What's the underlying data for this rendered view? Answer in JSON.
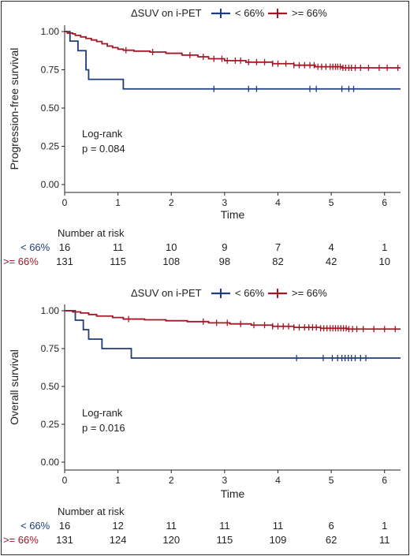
{
  "legend": {
    "title": "ΔSUV on i-PET",
    "entries": [
      "< 66%",
      ">= 66%"
    ]
  },
  "colors": {
    "low": "#1f3d7a",
    "high": "#a31624"
  },
  "risk_header": "Number at risk",
  "chart_data": [
    {
      "type": "line",
      "step": true,
      "ylabel": "Progression-free survival",
      "xlabel": "Time",
      "xlim": [
        0,
        6.3
      ],
      "ylim": [
        0,
        1
      ],
      "xticks": [
        "0",
        "1",
        "2",
        "3",
        "4",
        "5",
        "6"
      ],
      "yticks": [
        "0.00",
        "0.25",
        "0.50",
        "0.75",
        "1.00"
      ],
      "annotation": [
        "Log-rank",
        "p = 0.084"
      ],
      "series": [
        {
          "name": "< 66%",
          "steps": [
            [
              0,
              1.0
            ],
            [
              0.1,
              0.9375
            ],
            [
              0.25,
              0.875
            ],
            [
              0.4,
              0.75
            ],
            [
              0.45,
              0.6875
            ],
            [
              1.1,
              0.625
            ],
            [
              6.3,
              0.625
            ]
          ],
          "censor": [
            2.8,
            3.45,
            3.6,
            4.6,
            4.72,
            5.2,
            5.33,
            5.42
          ]
        },
        {
          "name": ">= 66%",
          "steps": [
            [
              0,
              1.0
            ],
            [
              0.05,
              0.99
            ],
            [
              0.15,
              0.985
            ],
            [
              0.2,
              0.975
            ],
            [
              0.3,
              0.965
            ],
            [
              0.4,
              0.955
            ],
            [
              0.5,
              0.945
            ],
            [
              0.6,
              0.935
            ],
            [
              0.7,
              0.92
            ],
            [
              0.8,
              0.905
            ],
            [
              0.9,
              0.895
            ],
            [
              1.0,
              0.885
            ],
            [
              1.1,
              0.878
            ],
            [
              1.3,
              0.872
            ],
            [
              1.6,
              0.866
            ],
            [
              1.9,
              0.858
            ],
            [
              2.2,
              0.846
            ],
            [
              2.5,
              0.835
            ],
            [
              2.7,
              0.822
            ],
            [
              3.0,
              0.81
            ],
            [
              3.4,
              0.8
            ],
            [
              3.9,
              0.79
            ],
            [
              4.3,
              0.78
            ],
            [
              4.7,
              0.77
            ],
            [
              5.2,
              0.763
            ],
            [
              6.3,
              0.763
            ]
          ],
          "censor": [
            1.15,
            1.65,
            2.35,
            2.6,
            2.8,
            2.95,
            3.05,
            3.2,
            3.3,
            3.45,
            3.6,
            3.75,
            3.9,
            4.0,
            4.15,
            4.3,
            4.4,
            4.5,
            4.6,
            4.68,
            4.75,
            4.82,
            4.9,
            4.98,
            5.03,
            5.08,
            5.12,
            5.17,
            5.22,
            5.27,
            5.33,
            5.38,
            5.45,
            5.55,
            5.7,
            5.9,
            6.05,
            6.25
          ]
        }
      ],
      "risk": {
        "low": [
          "16",
          "11",
          "10",
          "9",
          "7",
          "4",
          "1"
        ],
        "high": [
          "131",
          "115",
          "108",
          "98",
          "82",
          "42",
          "10"
        ]
      }
    },
    {
      "type": "line",
      "step": true,
      "ylabel": "Overall survival",
      "xlabel": "Time",
      "xlim": [
        0,
        6.3
      ],
      "ylim": [
        0,
        1
      ],
      "xticks": [
        "0",
        "1",
        "2",
        "3",
        "4",
        "5",
        "6"
      ],
      "yticks": [
        "0.00",
        "0.25",
        "0.50",
        "0.75",
        "1.00"
      ],
      "annotation": [
        "Log-rank",
        "p = 0.016"
      ],
      "series": [
        {
          "name": "< 66%",
          "steps": [
            [
              0,
              1.0
            ],
            [
              0.2,
              0.9375
            ],
            [
              0.35,
              0.875
            ],
            [
              0.45,
              0.8125
            ],
            [
              0.7,
              0.75
            ],
            [
              1.25,
              0.6875
            ],
            [
              6.3,
              0.6875
            ]
          ],
          "censor": [
            4.35,
            4.85,
            5.02,
            5.12,
            5.2,
            5.26,
            5.32,
            5.38,
            5.45,
            5.55,
            5.65
          ]
        },
        {
          "name": ">= 66%",
          "steps": [
            [
              0,
              1.0
            ],
            [
              0.15,
              0.992
            ],
            [
              0.3,
              0.985
            ],
            [
              0.45,
              0.975
            ],
            [
              0.6,
              0.965
            ],
            [
              0.9,
              0.955
            ],
            [
              1.1,
              0.945
            ],
            [
              1.5,
              0.94
            ],
            [
              1.9,
              0.934
            ],
            [
              2.3,
              0.928
            ],
            [
              2.7,
              0.92
            ],
            [
              3.1,
              0.913
            ],
            [
              3.5,
              0.905
            ],
            [
              3.9,
              0.897
            ],
            [
              4.3,
              0.89
            ],
            [
              4.8,
              0.884
            ],
            [
              5.3,
              0.879
            ],
            [
              6.3,
              0.879
            ]
          ],
          "censor": [
            1.2,
            2.6,
            2.85,
            3.05,
            3.3,
            3.55,
            3.75,
            3.9,
            4.0,
            4.1,
            4.2,
            4.3,
            4.4,
            4.5,
            4.58,
            4.65,
            4.72,
            4.8,
            4.86,
            4.92,
            4.98,
            5.03,
            5.08,
            5.13,
            5.18,
            5.23,
            5.28,
            5.33,
            5.4,
            5.48,
            5.6,
            5.8,
            6.0,
            6.2
          ]
        }
      ],
      "risk": {
        "low": [
          "16",
          "12",
          "11",
          "11",
          "11",
          "6",
          "1"
        ],
        "high": [
          "131",
          "124",
          "120",
          "115",
          "109",
          "62",
          "11"
        ]
      }
    }
  ]
}
